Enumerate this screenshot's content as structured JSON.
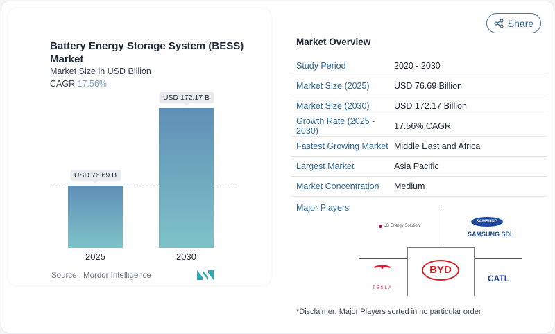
{
  "header": {
    "share_label": "Share",
    "share_icon": "share-icon"
  },
  "chart_data": {
    "type": "bar",
    "title": "Battery Energy Storage System (BESS) Market",
    "subtitle": "Market Size in USD Billion",
    "cagr_label": "CAGR",
    "cagr_value": "17.56%",
    "categories": [
      "2025",
      "2030"
    ],
    "values": [
      76.69,
      172.17
    ],
    "data_labels": [
      "USD 76.69 B",
      "USD 172.17 B"
    ],
    "source": "Source :  Mordor Intelligence",
    "colors": {
      "bar_top": "#5f8fb6",
      "bar_bottom": "#7fc3c9"
    }
  },
  "overview": {
    "title": "Market Overview",
    "rows": [
      {
        "key": "Study Period",
        "value": "2020 - 2030"
      },
      {
        "key": "Market Size (2025)",
        "value": "USD 76.69 Billion"
      },
      {
        "key": "Market Size (2030)",
        "value": "USD 172.17 Billion"
      },
      {
        "key": "Growth Rate (2025 - 2030)",
        "value": "17.56% CAGR"
      },
      {
        "key": "Fastest Growing Market",
        "value": "Middle East and Africa"
      },
      {
        "key": "Largest Market",
        "value": "Asia Pacific"
      },
      {
        "key": "Market Concentration",
        "value": "Medium"
      }
    ],
    "players_title": "Major Players",
    "players": [
      "LG Energy Solution",
      "SAMSUNG SDI",
      "TESLA",
      "BYD",
      "CATL"
    ],
    "samsung_oval": "SAMSUNG",
    "disclaimer": "*Disclaimer: Major Players sorted in no particular order"
  }
}
